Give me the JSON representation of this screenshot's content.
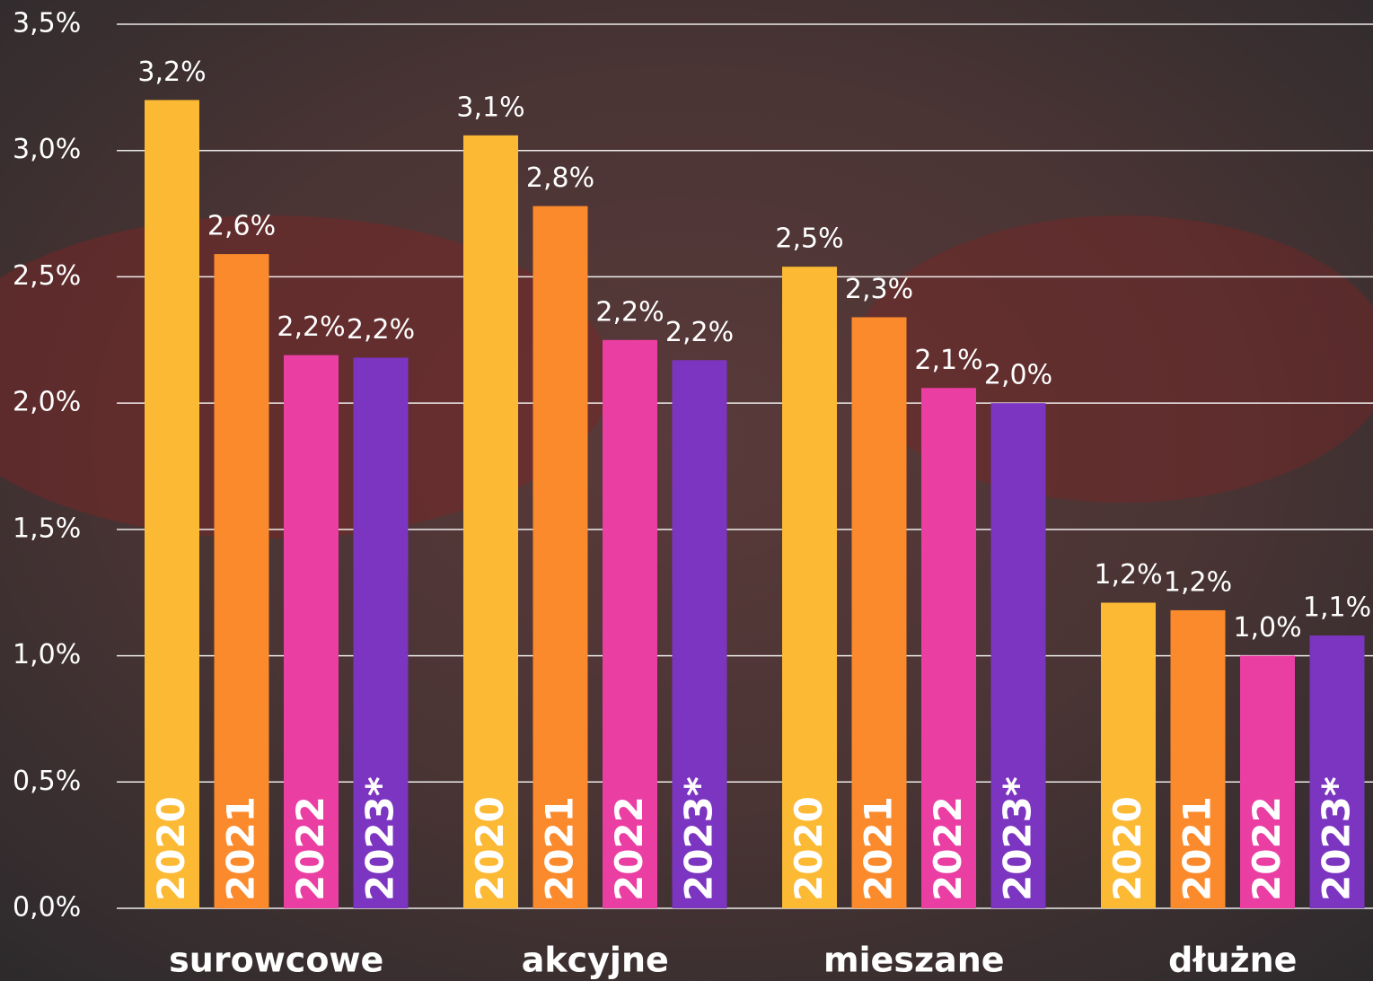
{
  "chart_data": {
    "type": "bar",
    "categories": [
      "surowcowe",
      "akcyjne",
      "mieszane",
      "dłużne"
    ],
    "series": [
      {
        "name": "2020",
        "color": "#fbb934",
        "values": [
          3.2,
          3.06,
          2.54,
          1.21
        ],
        "value_labels": [
          "3,2%",
          "3,1%",
          "2,5%",
          "1,2%"
        ]
      },
      {
        "name": "2021",
        "color": "#fb8a2c",
        "values": [
          2.59,
          2.78,
          2.34,
          1.18
        ],
        "value_labels": [
          "2,6%",
          "2,8%",
          "2,3%",
          "1,2%"
        ]
      },
      {
        "name": "2022",
        "color": "#ea3ea3",
        "values": [
          2.19,
          2.25,
          2.06,
          1.0
        ],
        "value_labels": [
          "2,2%",
          "2,2%",
          "2,1%",
          "1,0%"
        ]
      },
      {
        "name": "2023*",
        "color": "#7b35c0",
        "values": [
          2.18,
          2.17,
          2.0,
          1.08
        ],
        "value_labels": [
          "2,2%",
          "2,2%",
          "2,0%",
          "1,1%"
        ]
      }
    ],
    "ylim": [
      0,
      3.5
    ],
    "yticks": [
      {
        "value": 0,
        "label": "0,0%"
      },
      {
        "value": 0.5,
        "label": "0,5%"
      },
      {
        "value": 1,
        "label": "1,0%"
      },
      {
        "value": 1.5,
        "label": "1,5%"
      },
      {
        "value": 2,
        "label": "2,0%"
      },
      {
        "value": 2.5,
        "label": "2,5%"
      },
      {
        "value": 3,
        "label": "3,0%"
      },
      {
        "value": 3.5,
        "label": "3,5%"
      }
    ],
    "grid": true
  }
}
